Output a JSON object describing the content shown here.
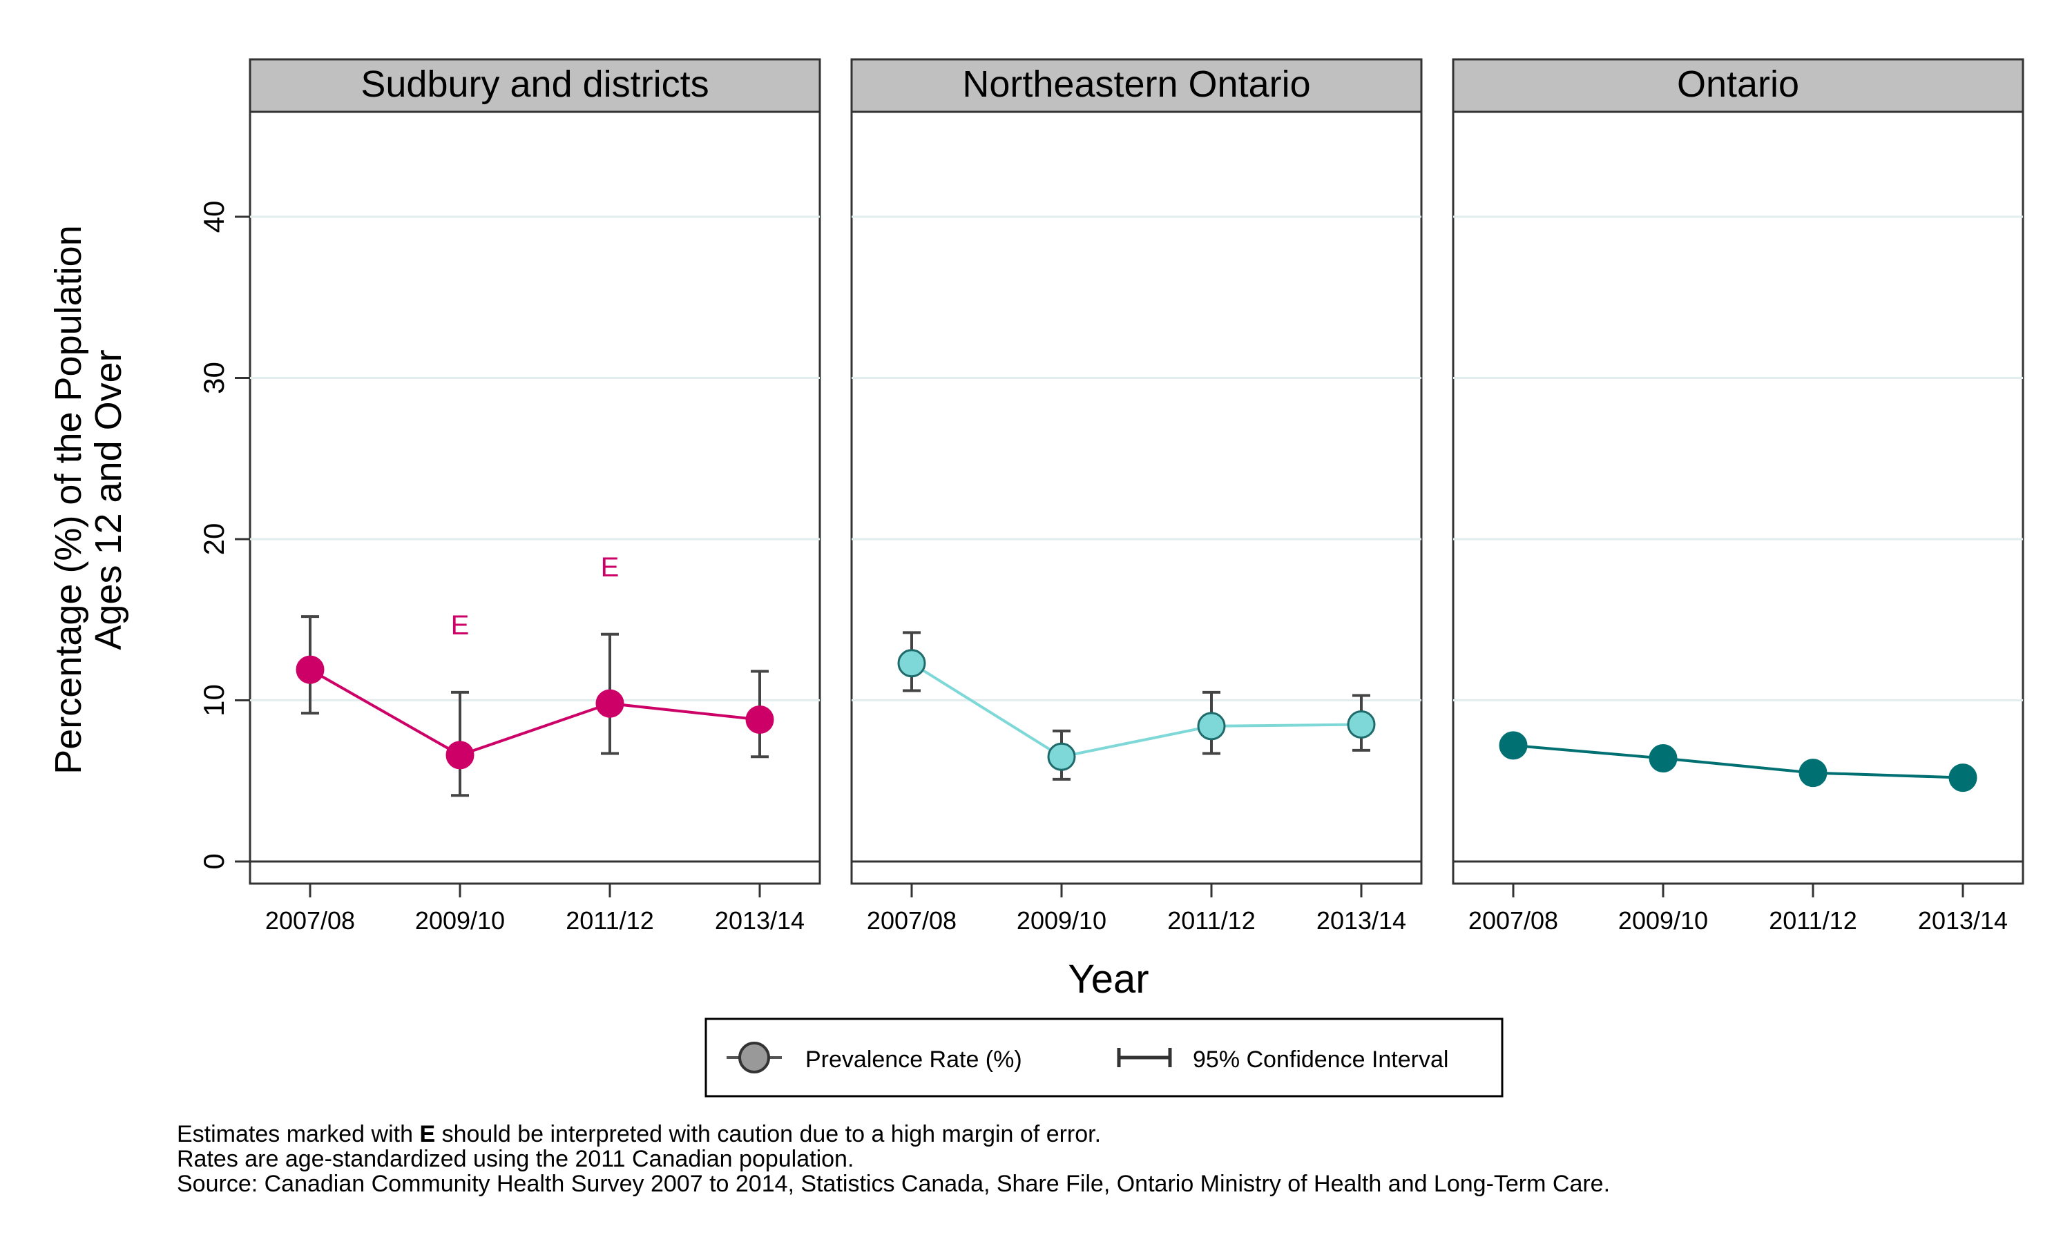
{
  "chart_data": {
    "type": "line",
    "ylabel_line1": "Percentage (%) of the Population",
    "ylabel_line2": "Ages 12 and Over",
    "xlabel": "Year",
    "ylim": [
      0,
      45
    ],
    "yticks": [
      0,
      10,
      20,
      30,
      40
    ],
    "categories": [
      "2007/08",
      "2009/10",
      "2011/12",
      "2013/14"
    ],
    "grid": true,
    "legend_position": "bottom",
    "panels": [
      {
        "title": "Sudbury and districts",
        "color": "#cc0066",
        "fill": "#cc0066",
        "values": [
          11.9,
          6.6,
          9.8,
          8.8
        ],
        "ci_low": [
          9.2,
          4.1,
          6.7,
          6.5
        ],
        "ci_high": [
          15.2,
          10.5,
          14.1,
          11.8
        ],
        "flags": [
          "",
          "E",
          "E",
          ""
        ]
      },
      {
        "title": "Northeastern Ontario",
        "color": "#7fd8d8",
        "fill": "#7fd8d8",
        "values": [
          12.3,
          6.5,
          8.4,
          8.5
        ],
        "ci_low": [
          10.6,
          5.1,
          6.7,
          6.9
        ],
        "ci_high": [
          14.2,
          8.1,
          10.5,
          10.3
        ],
        "flags": [
          "",
          "",
          "",
          ""
        ]
      },
      {
        "title": "Ontario",
        "color": "#007072",
        "fill": "#007072",
        "values": [
          7.2,
          6.4,
          5.5,
          5.2
        ],
        "ci_low": [
          null,
          null,
          null,
          null
        ],
        "ci_high": [
          null,
          null,
          null,
          null
        ],
        "flags": [
          "",
          "",
          "",
          ""
        ]
      }
    ],
    "legend": {
      "prevalence": "Prevalence Rate (%)",
      "ci": "95% Confidence Interval"
    },
    "footnotes": {
      "line1_prefix": "Estimates marked with ",
      "line1_bold": "E",
      "line1_suffix": " should be interpreted with caution due to a high margin of error.",
      "line2": "Rates are age-standardized using the 2011 Canadian population.",
      "line3": "Source: Canadian Community Health Survey 2007 to 2014, Statistics Canada, Share File, Ontario Ministry of Health and Long-Term Care."
    }
  }
}
